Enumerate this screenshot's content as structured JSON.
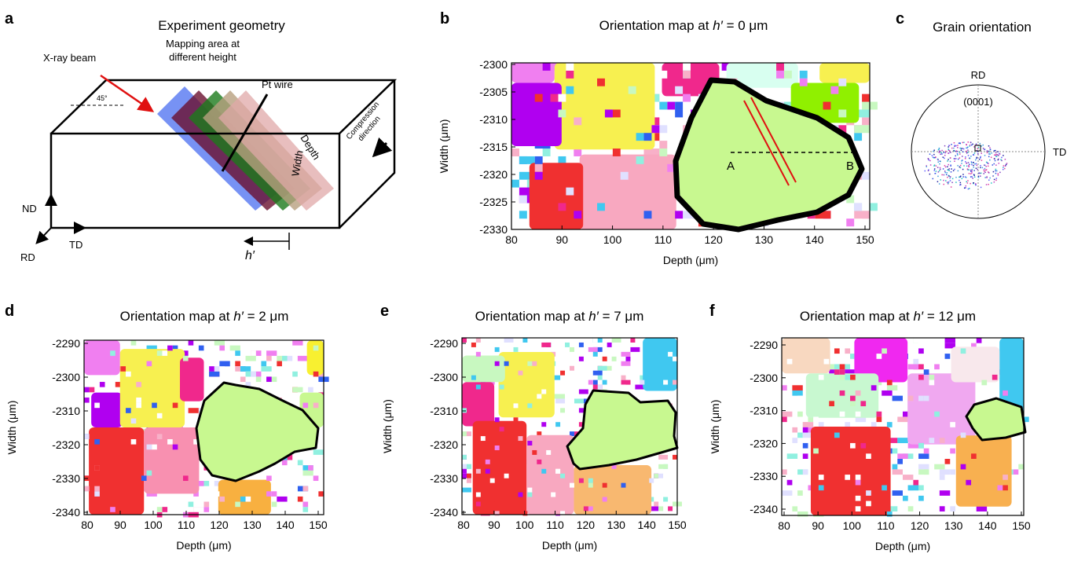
{
  "a": {
    "label": "a",
    "title": "Experiment geometry",
    "xray": "X-ray beam",
    "mapping": [
      "Mapping area at",
      "different height"
    ],
    "angle": "45°",
    "wire": "Pt wire",
    "depth": "Depth",
    "width": "Width",
    "compression": [
      "Compression",
      "direction"
    ],
    "nd": "ND",
    "td": "TD",
    "rd": "RD",
    "h": "h′"
  },
  "b": {
    "label": "b",
    "title": [
      "Orientation map at ",
      "h′",
      " = 0 μm"
    ],
    "xlabel": "Depth (μm)",
    "ylabel": "Width (μm)",
    "xlim": [
      80,
      150
    ],
    "ylim": [
      -2330,
      -2300
    ],
    "xticks": [
      80,
      90,
      100,
      110,
      120,
      130,
      140,
      150
    ],
    "yticks": [
      -2300,
      -2305,
      -2310,
      -2315,
      -2320,
      -2325,
      -2330
    ],
    "point_a": "A",
    "point_b": "B"
  },
  "c": {
    "label": "c",
    "title": "Grain orientation",
    "rd": "RD",
    "td": "TD",
    "pole": "(0001)"
  },
  "d": {
    "label": "d",
    "title": [
      "Orientation map at ",
      "h′",
      " = 2 μm"
    ],
    "xlabel": "Depth (μm)",
    "ylabel": "Width (μm)",
    "xlim": [
      80,
      150
    ],
    "ylim": [
      -2340,
      -2290
    ],
    "xticks": [
      80,
      90,
      100,
      110,
      120,
      130,
      140,
      150
    ],
    "yticks": [
      -2290,
      -2300,
      -2310,
      -2320,
      -2330,
      -2340
    ]
  },
  "e": {
    "label": "e",
    "title": [
      "Orientation map at ",
      "h′",
      " = 7 μm"
    ],
    "xlabel": "Depth (μm)",
    "ylabel": "Width (μm)",
    "xlim": [
      80,
      150
    ],
    "ylim": [
      -2340,
      -2290
    ],
    "xticks": [
      80,
      90,
      100,
      110,
      120,
      130,
      140,
      150
    ],
    "yticks": [
      -2290,
      -2300,
      -2310,
      -2320,
      -2330,
      -2340
    ]
  },
  "f": {
    "label": "f",
    "title": [
      "Orientation map at ",
      "h′",
      " = 12 μm"
    ],
    "xlabel": "Depth (μm)",
    "ylabel": "Width (μm)",
    "xlim": [
      80,
      150
    ],
    "ylim": [
      -2340,
      -2290
    ],
    "xticks": [
      80,
      90,
      100,
      110,
      120,
      130,
      140,
      150
    ],
    "yticks": [
      -2290,
      -2300,
      -2310,
      -2320,
      -2330,
      -2340
    ]
  }
}
